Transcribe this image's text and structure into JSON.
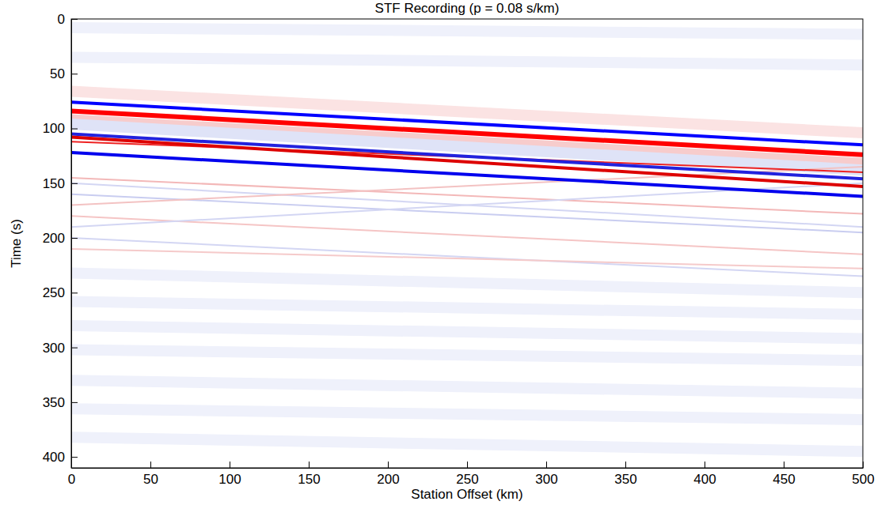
{
  "chart_data": {
    "type": "line",
    "title": "STF Recording (p = 0.08 s/km)",
    "x_label": "Station Offset (km)",
    "y_label": "Time (s)",
    "xlim": [
      0,
      500
    ],
    "ylim": [
      0,
      410
    ],
    "xticks": [
      0,
      50,
      100,
      150,
      200,
      250,
      300,
      350,
      400,
      450,
      500
    ],
    "yticks": [
      0,
      50,
      100,
      150,
      200,
      250,
      300,
      350,
      400
    ],
    "grid": false,
    "x": [
      0,
      500
    ],
    "series": [
      {
        "color": "#eff1fb",
        "line_style": "band",
        "values": [
          8,
          14
        ]
      },
      {
        "color": "#eff1fb",
        "line_style": "band",
        "values": [
          35,
          42
        ]
      },
      {
        "color": "#eff1fb",
        "line_style": "band",
        "values": [
          232,
          250
        ]
      },
      {
        "color": "#eff1fb",
        "line_style": "band",
        "values": [
          258,
          270
        ]
      },
      {
        "color": "#eff1fb",
        "line_style": "band",
        "values": [
          280,
          292
        ]
      },
      {
        "color": "#eff1fb",
        "line_style": "band",
        "values": [
          302,
          312
        ]
      },
      {
        "color": "#eff1fb",
        "line_style": "band",
        "values": [
          330,
          342
        ]
      },
      {
        "color": "#eff1fb",
        "line_style": "band",
        "values": [
          356,
          366
        ]
      },
      {
        "color": "#eff1fb",
        "line_style": "band",
        "values": [
          382,
          395
        ]
      },
      {
        "color": "#fbe3e3",
        "line_style": "band",
        "values": [
          66,
          104
        ]
      },
      {
        "color": "#f7cccc",
        "line_style": "band",
        "values": [
          92,
          132
        ]
      },
      {
        "color": "#dfe3f7",
        "line_style": "band",
        "values": [
          96,
          138
        ]
      },
      {
        "color": "#f3b8b8",
        "line_style": "thin",
        "values": [
          145,
          178
        ]
      },
      {
        "color": "#c9cdf0",
        "line_style": "thin",
        "values": [
          160,
          195
        ]
      },
      {
        "color": "#f5c5c5",
        "line_style": "thin",
        "values": [
          180,
          215
        ]
      },
      {
        "color": "#d3d6f3",
        "line_style": "thin",
        "values": [
          150,
          190
        ]
      },
      {
        "color": "#d3d6f3",
        "line_style": "thin",
        "values": [
          190,
          150
        ]
      },
      {
        "color": "#f3c2c2",
        "line_style": "thin",
        "values": [
          170,
          135
        ]
      },
      {
        "color": "#d3d6f3",
        "line_style": "thin",
        "values": [
          200,
          235
        ]
      },
      {
        "color": "#f5caca",
        "line_style": "thin",
        "values": [
          210,
          228
        ]
      },
      {
        "color": "#ff0000",
        "line_style": "wide",
        "values": [
          84,
          124
        ]
      },
      {
        "color": "#0000ff",
        "line_style": "solid",
        "values": [
          76,
          115
        ]
      },
      {
        "color": "#ee2222",
        "line_style": "thin",
        "values": [
          112,
          140
        ]
      },
      {
        "color": "#2222dd",
        "line_style": "solid",
        "values": [
          105,
          146
        ]
      },
      {
        "color": "#dd0000",
        "line_style": "solid",
        "values": [
          108,
          153
        ]
      },
      {
        "color": "#0000ee",
        "line_style": "solid",
        "values": [
          122,
          162
        ]
      }
    ]
  }
}
